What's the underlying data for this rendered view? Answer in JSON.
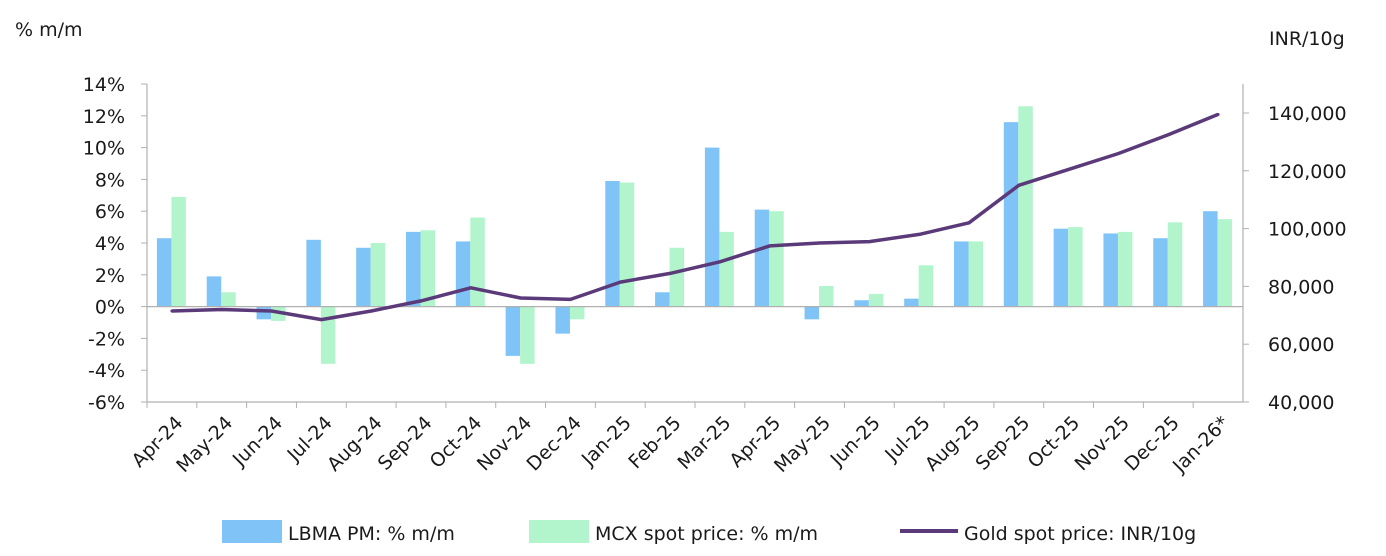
{
  "chart_data": {
    "type": "bar+line",
    "categories": [
      "Apr-24",
      "May-24",
      "Jun-24",
      "Jul-24",
      "Aug-24",
      "Sep-24",
      "Oct-24",
      "Nov-24",
      "Dec-24",
      "Jan-25",
      "Feb-25",
      "Mar-25",
      "Apr-25",
      "May-25",
      "Jun-25",
      "Jul-25",
      "Aug-25",
      "Sep-25",
      "Oct-25",
      "Nov-25",
      "Dec-25",
      "Jan-26*"
    ],
    "series": [
      {
        "name": "LBMA PM: % m/m",
        "type": "bar",
        "axis": "left",
        "color": "#7fc3f7",
        "values": [
          4.3,
          1.9,
          -0.8,
          4.2,
          3.7,
          4.7,
          4.1,
          -3.1,
          -1.7,
          7.9,
          0.9,
          10.0,
          6.1,
          -0.8,
          0.4,
          0.5,
          4.1,
          11.6,
          4.9,
          4.6,
          4.3,
          6.0
        ]
      },
      {
        "name": "MCX spot price: % m/m",
        "type": "bar",
        "axis": "left",
        "color": "#b2f5cd",
        "values": [
          6.9,
          0.9,
          -0.9,
          -3.6,
          4.0,
          4.8,
          5.6,
          -3.6,
          -0.8,
          7.8,
          3.7,
          4.7,
          6.0,
          1.3,
          0.8,
          2.6,
          4.1,
          12.6,
          5.0,
          4.7,
          5.3,
          5.5
        ]
      },
      {
        "name": "Gold spot price: INR/10g",
        "type": "line",
        "axis": "right",
        "color": "#5b3a7a",
        "values": [
          71500,
          72000,
          71500,
          68500,
          71500,
          75000,
          79500,
          76000,
          75500,
          81500,
          84500,
          88500,
          94000,
          95000,
          95500,
          98000,
          102000,
          115000,
          120500,
          126000,
          132500,
          139500
        ]
      }
    ],
    "left_axis": {
      "label": "% m/m",
      "range": [
        -6,
        14
      ],
      "ticks": [
        -6,
        -4,
        -2,
        0,
        2,
        4,
        6,
        8,
        10,
        12,
        14
      ],
      "tick_labels": [
        "-6%",
        "-4%",
        "-2%",
        "0%",
        "2%",
        "4%",
        "6%",
        "8%",
        "10%",
        "12%",
        "14%"
      ]
    },
    "right_axis": {
      "label": "INR/10g",
      "range": [
        40000,
        150000
      ],
      "ticks": [
        40000,
        60000,
        80000,
        100000,
        120000,
        140000
      ],
      "tick_labels": [
        "40,000",
        "60,000",
        "80,000",
        "100,000",
        "120,000",
        "140,000"
      ]
    },
    "legend": {
      "placement": "bottom",
      "items": [
        "LBMA PM: % m/m",
        "MCX spot price: % m/m",
        "Gold spot price: INR/10g"
      ]
    },
    "grid": false
  }
}
